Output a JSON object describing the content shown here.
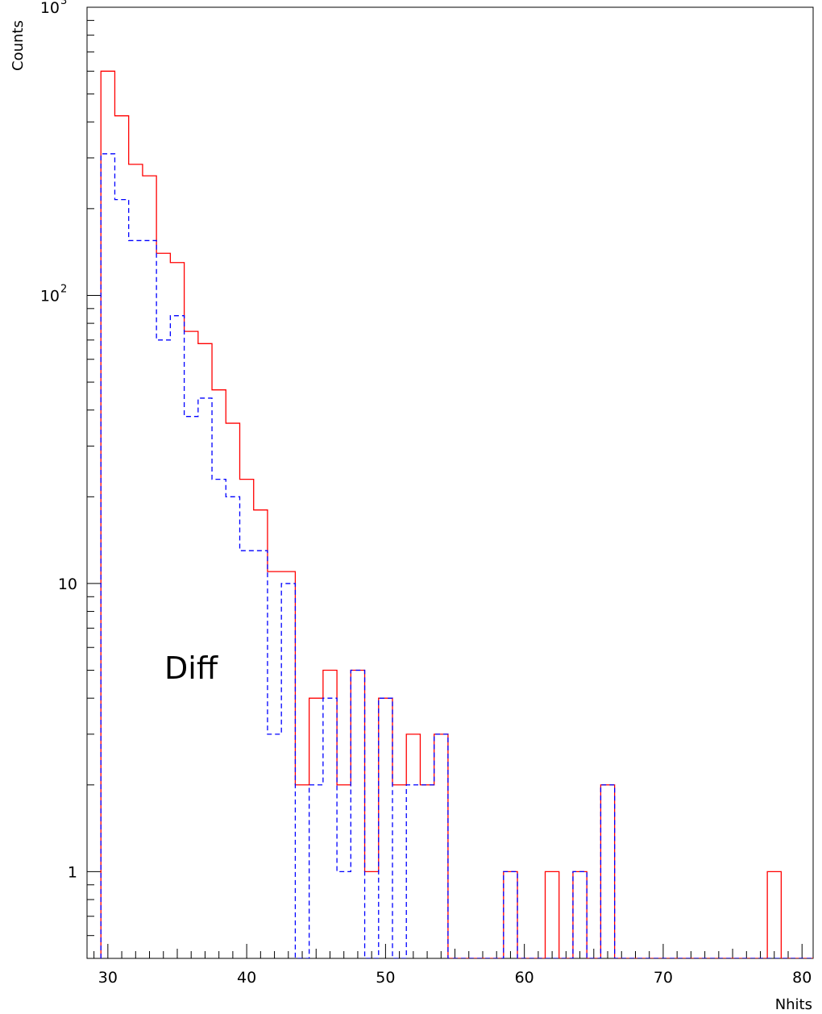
{
  "chart_data": {
    "type": "histogram",
    "xlabel": "Nhits",
    "ylabel": "Counts",
    "annotation": "Diff",
    "x_range": [
      28.5,
      80.8
    ],
    "y_range": [
      0.5,
      1000
    ],
    "y_scale": "log",
    "bin_width": 1,
    "x_ticks": [
      30,
      40,
      50,
      60,
      70,
      80
    ],
    "y_ticks": [
      {
        "value": 1,
        "text": "1"
      },
      {
        "value": 10,
        "text": "10"
      },
      {
        "value": 100,
        "base": "10",
        "exp": "2"
      },
      {
        "value": 1000,
        "base": "10",
        "exp": "3"
      }
    ],
    "grid": false,
    "series": [
      {
        "style": "solid",
        "color": "#ff0000",
        "bin_edges_start": 29.5,
        "values": [
          600,
          420,
          285,
          260,
          140,
          130,
          75,
          68,
          47,
          36,
          23,
          18,
          11,
          11,
          2,
          4,
          5,
          2,
          5,
          1,
          4,
          2,
          3,
          2,
          3,
          0,
          0,
          0,
          0,
          1,
          0,
          0,
          1,
          0,
          1,
          0,
          2,
          0,
          0,
          0,
          0,
          0,
          0,
          0,
          0,
          0,
          0,
          0,
          1,
          0,
          0,
          0
        ]
      },
      {
        "style": "dashed",
        "color": "#0000ff",
        "bin_edges_start": 29.5,
        "values": [
          310,
          215,
          155,
          155,
          70,
          85,
          38,
          44,
          23,
          20,
          13,
          13,
          3,
          10,
          0,
          2,
          4,
          1,
          5,
          0,
          4,
          0,
          2,
          2,
          3,
          0,
          0,
          0,
          0,
          1,
          0,
          0,
          0,
          0,
          1,
          0,
          2,
          0,
          0,
          0,
          0,
          0,
          0,
          0,
          0,
          0,
          0,
          0,
          0,
          0,
          0,
          0
        ]
      }
    ]
  }
}
